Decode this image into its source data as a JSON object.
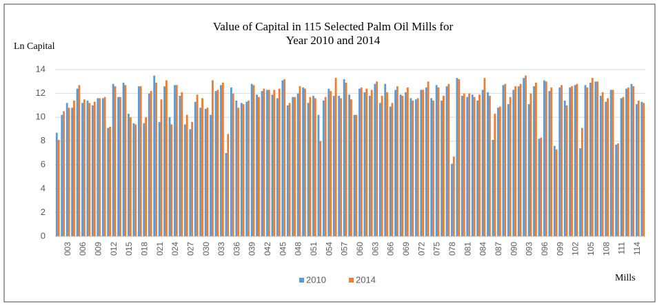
{
  "chart_data": {
    "type": "bar",
    "title": [
      "Value of Capital in 115 Selected Palm Oil Mills for",
      "Year 2010 and 2014"
    ],
    "y_label": "Ln Capital",
    "x_label": "Mills",
    "categories": [
      null,
      null,
      "003",
      null,
      null,
      "006",
      null,
      null,
      "009",
      null,
      null,
      "012",
      null,
      null,
      "015",
      null,
      null,
      "018",
      null,
      null,
      "021",
      null,
      null,
      "024",
      null,
      null,
      "027",
      null,
      null,
      "030",
      null,
      null,
      "033",
      null,
      null,
      "036",
      null,
      null,
      "039",
      null,
      null,
      "042",
      null,
      null,
      "045",
      null,
      null,
      "048",
      null,
      null,
      "051",
      null,
      null,
      "054",
      null,
      null,
      "057",
      null,
      null,
      "060",
      null,
      null,
      "063",
      null,
      null,
      "066",
      null,
      null,
      "069",
      null,
      null,
      "072",
      null,
      null,
      "075",
      null,
      null,
      "078",
      null,
      null,
      "081",
      null,
      null,
      "084",
      null,
      null,
      "087",
      null,
      null,
      "090",
      null,
      null,
      "093",
      null,
      null,
      "096",
      null,
      null,
      "099",
      null,
      null,
      "102",
      null,
      null,
      "105",
      null,
      null,
      "108",
      null,
      null,
      "111",
      null,
      null,
      "114",
      null
    ],
    "series": [
      {
        "name": "2010",
        "color": "#5b9bd5",
        "values": [
          8.7,
          10.2,
          11.2,
          10.8,
          12.4,
          11.2,
          11.4,
          11.0,
          11.6,
          11.6,
          9.1,
          12.8,
          11.7,
          12.9,
          10.3,
          9.5,
          12.6,
          9.5,
          12.0,
          13.5,
          9.6,
          12.6,
          10.0,
          12.7,
          11.8,
          9.4,
          9.0,
          11.3,
          10.8,
          10.7,
          10.2,
          12.2,
          12.7,
          7.0,
          12.5,
          11.4,
          11.2,
          11.3,
          12.8,
          11.9,
          12.2,
          12.3,
          11.9,
          11.6,
          13.1,
          11.0,
          11.7,
          12.0,
          12.5,
          11.2,
          11.8,
          10.2,
          11.4,
          12.4,
          11.8,
          11.8,
          13.2,
          11.9,
          10.2,
          12.4,
          12.1,
          11.8,
          12.8,
          11.2,
          12.8,
          10.9,
          12.3,
          11.9,
          12.1,
          11.6,
          11.5,
          12.3,
          12.5,
          11.6,
          12.7,
          11.4,
          12.6,
          6.1,
          13.3,
          11.8,
          11.7,
          11.9,
          11.4,
          12.3,
          12.1,
          8.1,
          10.8,
          12.7,
          11.1,
          12.3,
          12.6,
          13.3,
          11.1,
          12.6,
          8.2,
          13.1,
          12.2,
          7.6,
          12.5,
          11.4,
          12.5,
          12.7,
          7.4,
          12.7,
          12.9,
          13.0,
          11.8,
          11.3,
          12.3,
          7.7,
          11.6,
          12.4,
          12.8,
          11.1,
          11.3
        ]
      },
      {
        "name": "2014",
        "color": "#ed7d31",
        "values": [
          8.1,
          10.5,
          10.8,
          11.4,
          12.7,
          11.5,
          11.2,
          11.3,
          11.6,
          11.7,
          9.2,
          12.6,
          11.7,
          12.7,
          10.0,
          9.4,
          12.6,
          10.0,
          12.2,
          12.9,
          11.5,
          13.1,
          9.4,
          12.7,
          12.1,
          10.2,
          9.6,
          11.9,
          11.6,
          10.8,
          13.1,
          12.3,
          12.9,
          8.6,
          12.0,
          10.8,
          11.1,
          11.4,
          12.7,
          11.7,
          12.4,
          12.3,
          12.3,
          12.4,
          13.2,
          11.2,
          11.7,
          12.6,
          12.4,
          11.7,
          11.6,
          8.0,
          11.7,
          12.2,
          13.3,
          11.6,
          12.9,
          11.5,
          10.2,
          12.5,
          12.4,
          12.3,
          13.0,
          11.8,
          12.1,
          11.2,
          12.6,
          11.8,
          12.5,
          11.4,
          11.6,
          12.3,
          13.0,
          11.4,
          12.5,
          11.8,
          12.8,
          6.7,
          13.2,
          12.0,
          12.0,
          11.7,
          11.9,
          13.3,
          11.8,
          10.3,
          10.9,
          12.8,
          11.7,
          12.6,
          12.8,
          13.5,
          12.0,
          12.9,
          8.3,
          13.0,
          12.5,
          7.3,
          12.7,
          11.0,
          12.6,
          12.8,
          9.1,
          12.5,
          13.3,
          13.0,
          12.1,
          11.6,
          12.3,
          7.8,
          11.7,
          12.5,
          12.6,
          11.4,
          11.2
        ]
      }
    ],
    "ylim": [
      0,
      14
    ],
    "yticks": [
      0,
      2,
      4,
      6,
      8,
      10,
      12,
      14
    ],
    "grid": true,
    "legend": "bottom"
  }
}
